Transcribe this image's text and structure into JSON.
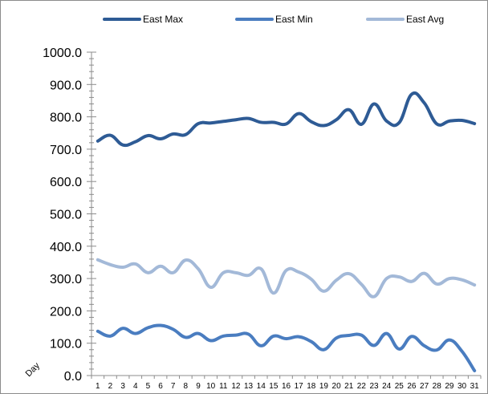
{
  "chart_data": {
    "type": "line",
    "title": "",
    "xlabel": "Day",
    "ylabel": "",
    "ylim": [
      0,
      1000
    ],
    "y_ticks": [
      "0.0",
      "100.0",
      "200.0",
      "300.0",
      "400.0",
      "500.0",
      "600.0",
      "700.0",
      "800.0",
      "900.0",
      "1000.0"
    ],
    "categories": [
      "1",
      "2",
      "3",
      "4",
      "5",
      "6",
      "7",
      "8",
      "9",
      "10",
      "11",
      "12",
      "13",
      "14",
      "15",
      "16",
      "17",
      "18",
      "19",
      "20",
      "21",
      "22",
      "23",
      "24",
      "25",
      "26",
      "27",
      "28",
      "29",
      "30",
      "31"
    ],
    "grid": false,
    "legend_position": "top",
    "series": [
      {
        "name": "East Max",
        "color": "#2e5b95",
        "values": [
          725,
          743,
          713,
          723,
          742,
          732,
          747,
          745,
          779,
          781,
          786,
          791,
          795,
          783,
          783,
          778,
          810,
          785,
          773,
          791,
          822,
          777,
          840,
          787,
          782,
          870,
          843,
          778,
          787,
          789,
          779
        ]
      },
      {
        "name": "East Min",
        "color": "#4a7dc0",
        "values": [
          137,
          122,
          146,
          130,
          148,
          155,
          143,
          118,
          130,
          108,
          122,
          125,
          128,
          92,
          122,
          114,
          120,
          105,
          80,
          116,
          124,
          125,
          93,
          130,
          82,
          121,
          92,
          79,
          110,
          75,
          15
        ]
      },
      {
        "name": "East Avg",
        "color": "#a3b9d8",
        "values": [
          358,
          343,
          335,
          345,
          318,
          338,
          318,
          357,
          330,
          273,
          318,
          318,
          310,
          330,
          255,
          325,
          320,
          298,
          261,
          295,
          315,
          282,
          244,
          300,
          305,
          291,
          316,
          283,
          300,
          296,
          280
        ]
      }
    ]
  }
}
